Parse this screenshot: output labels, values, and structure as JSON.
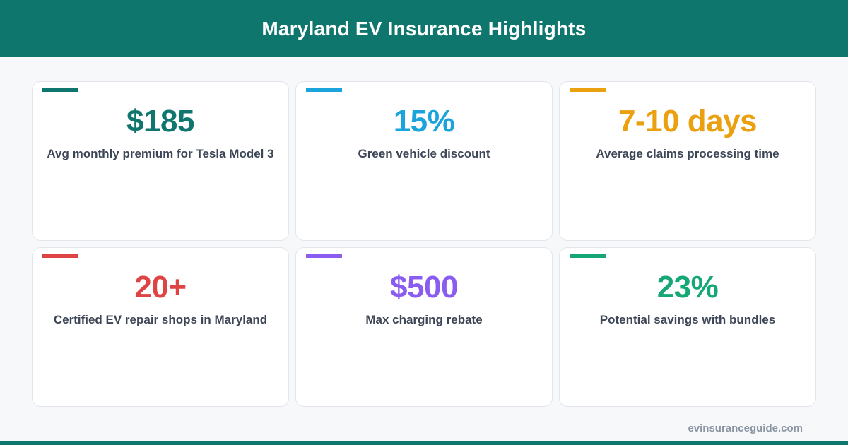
{
  "header": {
    "title": "Maryland EV Insurance Highlights"
  },
  "cards": [
    {
      "value": "$185",
      "label": "Avg monthly premium for Tesla Model 3",
      "color": "#0f766e"
    },
    {
      "value": "15%",
      "label": "Green vehicle discount",
      "color": "#1ba3dc"
    },
    {
      "value": "7-10 days",
      "label": "Average claims processing time",
      "color": "#eaa00f"
    },
    {
      "value": "20+",
      "label": "Certified EV repair shops in Maryland",
      "color": "#df4444"
    },
    {
      "value": "$500",
      "label": "Max charging rebate",
      "color": "#8b5cf0"
    },
    {
      "value": "23%",
      "label": "Potential savings with bundles",
      "color": "#16a874"
    }
  ],
  "footer": {
    "site": "evinsuranceguide.com"
  },
  "theme": {
    "brand": "#0f766e"
  }
}
